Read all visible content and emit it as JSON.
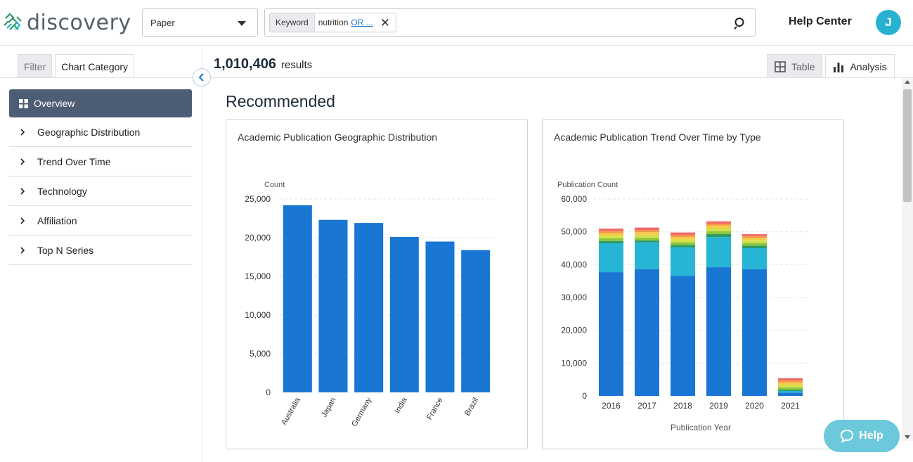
{
  "header": {
    "logo_text": "discovery",
    "type_select": "Paper",
    "chip_key": "Keyword",
    "chip_value": "nutrition",
    "chip_link": "OR ...",
    "help_center": "Help Center",
    "avatar_initial": "J"
  },
  "sidebar": {
    "tabs": [
      "Filter",
      "Chart Category"
    ],
    "active_item": "Overview",
    "items": [
      "Geographic Distribution",
      "Trend Over Time",
      "Technology",
      "Affiliation",
      "Top N Series"
    ]
  },
  "main": {
    "results_count": "1,010,406",
    "results_label": "results",
    "view_tabs": [
      "Table",
      "Analysis"
    ],
    "section_title": "Recommended"
  },
  "help_button": "Help",
  "colors": {
    "bar_blue": "#1976d2",
    "teal": "#26b5d4",
    "sidebar_active": "#4e5d76"
  },
  "chart_data": [
    {
      "type": "bar",
      "title": "Academic Publication Geographic Distribution",
      "ylabel": "Count",
      "xlabel": "",
      "categories": [
        "Australia",
        "Japan",
        "Germany",
        "India",
        "France",
        "Brazil"
      ],
      "values": [
        24200,
        22300,
        21900,
        20100,
        19500,
        18400
      ],
      "ylim": [
        0,
        25000
      ],
      "yticks": [
        "0",
        "5,000",
        "10,000",
        "15,000",
        "20,000",
        "25,000"
      ],
      "grid": true
    },
    {
      "type": "bar",
      "stacked": true,
      "title": "Academic Publication Trend Over Time by Type",
      "ylabel": "Publication Count",
      "xlabel": "Publication Year",
      "categories": [
        "2016",
        "2017",
        "2018",
        "2019",
        "2020",
        "2021"
      ],
      "ylim": [
        0,
        60000
      ],
      "yticks": [
        "0",
        "10,000",
        "20,000",
        "30,000",
        "40,000",
        "50,000",
        "60,000"
      ],
      "series": [
        {
          "color": "#1976d2",
          "values": [
            37700,
            38600,
            36600,
            39200,
            38600,
            1000
          ]
        },
        {
          "color": "#26b5d4",
          "values": [
            8800,
            8200,
            8700,
            9200,
            6400,
            500
          ]
        },
        {
          "color": "#2e9a62",
          "values": [
            700,
            600,
            700,
            900,
            800,
            400
          ]
        },
        {
          "color": "#8dc63f",
          "values": [
            800,
            800,
            800,
            900,
            800,
            700
          ]
        },
        {
          "color": "#d6e04a",
          "values": [
            900,
            900,
            900,
            900,
            900,
            800
          ]
        },
        {
          "color": "#f7c948",
          "values": [
            700,
            800,
            700,
            800,
            700,
            700
          ]
        },
        {
          "color": "#f49a45",
          "values": [
            600,
            600,
            600,
            600,
            500,
            600
          ]
        },
        {
          "color": "#f26a6a",
          "values": [
            800,
            800,
            800,
            700,
            600,
            700
          ]
        }
      ],
      "grid": true
    }
  ]
}
